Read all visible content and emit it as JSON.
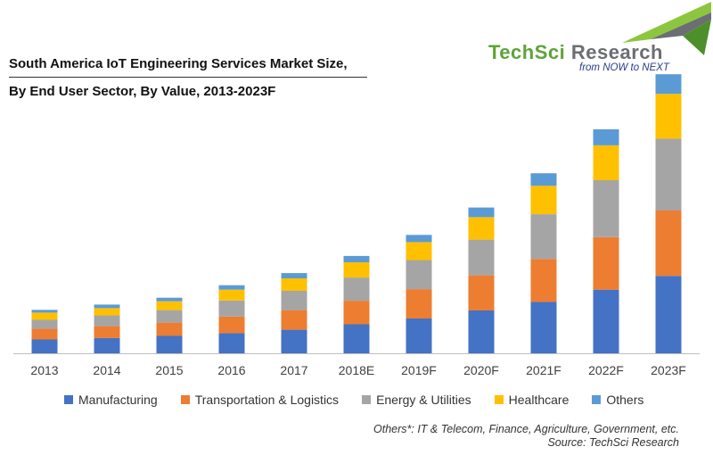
{
  "header": {
    "title_line1": "South America IoT Engineering Services Market Size,",
    "title_line2": "By End User Sector, By Value, 2013-2023F"
  },
  "logo": {
    "brand_part1": "TechSci",
    "brand_part2": " Research",
    "tagline": "from NOW to NEXT",
    "colors": {
      "green": "#5ea338",
      "gray": "#6b6e72",
      "navy": "#243e8a"
    }
  },
  "footnote": {
    "others_note": "Others*: IT & Telecom, Finance, Agriculture, Government, etc.",
    "source": "Source: TechSci Research"
  },
  "chart_data": {
    "type": "bar",
    "stacked": true,
    "title": "South America IoT Engineering Services Market Size, By End User Sector, By Value, 2013-2023F",
    "xlabel": "",
    "ylabel": "",
    "ylim": [
      0,
      100
    ],
    "grid": false,
    "legend_position": "bottom",
    "categories": [
      "2013",
      "2014",
      "2015",
      "2016",
      "2017",
      "2018E",
      "2019F",
      "2020F",
      "2021F",
      "2022F",
      "2023F"
    ],
    "series": [
      {
        "name": "Manufacturing",
        "color": "#4472c4",
        "values": [
          5,
          5.5,
          6.3,
          7.3,
          8.5,
          10.5,
          12.6,
          15.5,
          18.6,
          23,
          28
        ]
      },
      {
        "name": "Transportation & Logistics",
        "color": "#ed7d31",
        "values": [
          3.9,
          4.3,
          4.8,
          6,
          7.1,
          8.5,
          10.6,
          12.7,
          15.5,
          19,
          23.6
        ]
      },
      {
        "name": "Energy & Utilities",
        "color": "#a5a5a5",
        "values": [
          3.2,
          3.9,
          4.5,
          5.8,
          7,
          8.4,
          10.5,
          12.9,
          16.2,
          20.6,
          26
        ]
      },
      {
        "name": "Healthcare",
        "color": "#ffc000",
        "values": [
          2.6,
          2.6,
          3.2,
          3.9,
          4.5,
          5.5,
          6.5,
          8.1,
          10.3,
          12.6,
          16.2
        ]
      },
      {
        "name": "Others",
        "color": "#5b9bd5",
        "values": [
          1,
          1.3,
          1.3,
          1.6,
          1.9,
          2.3,
          2.6,
          3.5,
          4.5,
          5.8,
          7.1
        ]
      }
    ]
  }
}
